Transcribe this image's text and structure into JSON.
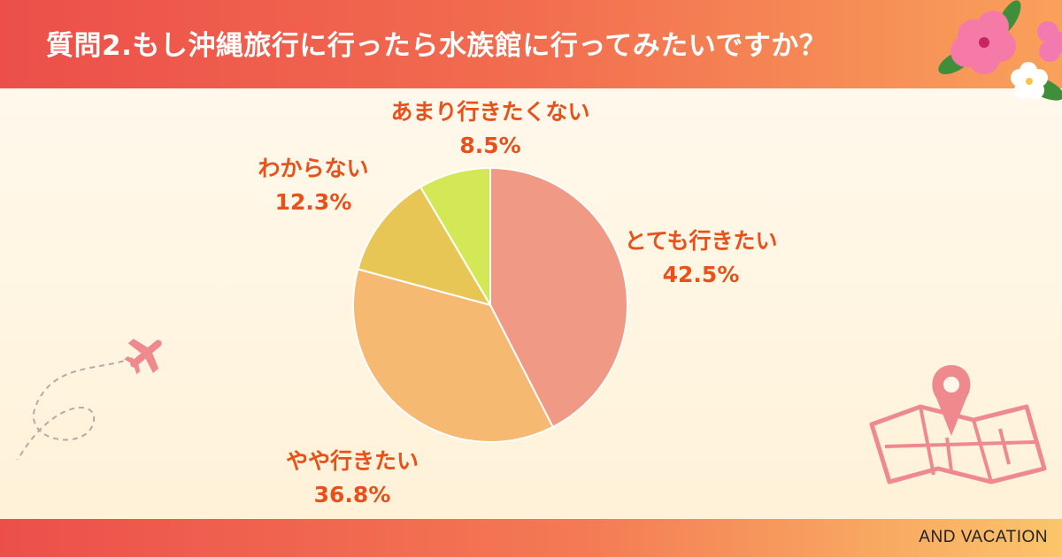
{
  "header": {
    "title": "質問2.もし沖縄旅行に行ったら水族館に行ってみたいですか？"
  },
  "brand": "AND VACATION",
  "colors": {
    "text_accent": "#e8511a",
    "slices": [
      "#f09a85",
      "#f5b972",
      "#e8c655",
      "#d4e857"
    ]
  },
  "chart_data": {
    "type": "pie",
    "title": "質問2.もし沖縄旅行に行ったら水族館に行ってみたいですか？",
    "unit": "%",
    "slices": [
      {
        "label": "とても行きたい",
        "value": 42.5,
        "display": "42.5%"
      },
      {
        "label": "やや行きたい",
        "value": 36.8,
        "display": "36.8%"
      },
      {
        "label": "わからない",
        "value": 12.3,
        "display": "12.3%"
      },
      {
        "label": "あまり行きたくない",
        "value": 8.5,
        "display": "8.5%"
      }
    ],
    "start": "12 o'clock",
    "direction": "clockwise"
  },
  "icons": [
    "hibiscus-flower-icon",
    "airplane-icon",
    "map-pin-icon"
  ]
}
